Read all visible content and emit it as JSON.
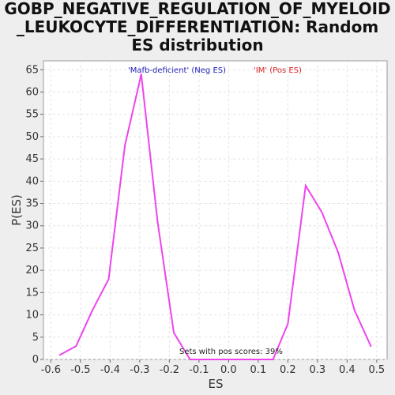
{
  "chart_data": {
    "type": "line",
    "title_lines": [
      "GOBP_NEGATIVE_REGULATION_OF_MYELOID",
      "_LEUKOCYTE_DIFFERENTIATION: Random",
      "ES distribution"
    ],
    "xlabel": "ES",
    "ylabel": "P(ES)",
    "xlim": [
      -0.625,
      0.535
    ],
    "ylim": [
      0,
      67
    ],
    "xticks": [
      -0.6,
      -0.5,
      -0.4,
      -0.3,
      -0.2,
      -0.1,
      0.0,
      0.1,
      0.2,
      0.3,
      0.4,
      0.5
    ],
    "xtick_labels": [
      "-0.6",
      "-0.5",
      "-0.4",
      "-0.3",
      "-0.2",
      "-0.1",
      "0.0",
      "0.1",
      "0.2",
      "0.3",
      "0.4",
      "0.5"
    ],
    "yticks": [
      0,
      5,
      10,
      15,
      20,
      25,
      30,
      35,
      40,
      45,
      50,
      55,
      60,
      65
    ],
    "ytick_labels": [
      "0",
      "5",
      "10",
      "15",
      "20",
      "25",
      "30",
      "35",
      "40",
      "45",
      "50",
      "55",
      "60",
      "65"
    ],
    "grid": true,
    "series": [
      {
        "color": "#ee44ee",
        "x": [
          -0.57,
          -0.515,
          -0.46,
          -0.405,
          -0.35,
          -0.295,
          -0.24,
          -0.185,
          -0.13,
          0.15,
          0.2,
          0.26,
          0.315,
          0.37,
          0.425,
          0.48
        ],
        "y": [
          1,
          3,
          11,
          18,
          48,
          64,
          31,
          6,
          0,
          0,
          8,
          39,
          33,
          24,
          11,
          3
        ]
      }
    ],
    "annotations": [
      {
        "text": "'Mafb-deficient' (Neg ES)",
        "color": "#2222bb"
      },
      {
        "text": "'IM' (Pos ES)",
        "color": "#dd2222"
      },
      {
        "text": "Sets with pos scores: 39%",
        "color": "#222222"
      }
    ]
  }
}
